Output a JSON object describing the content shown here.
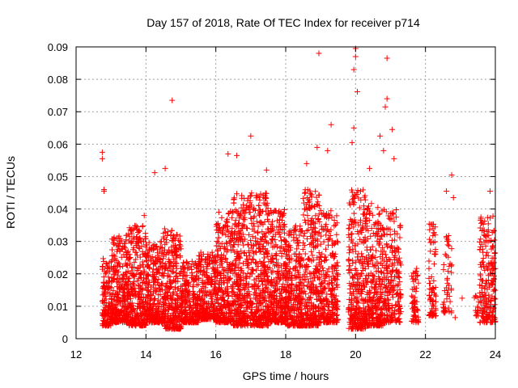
{
  "chart_data": {
    "type": "scatter",
    "title": "Day 157 of 2018, Rate Of TEC Index for receiver p714",
    "xlabel": "GPS time / hours",
    "ylabel": "ROTI / TECUs",
    "xlim": [
      12,
      24
    ],
    "ylim": [
      0,
      0.09
    ],
    "x_ticks": [
      12,
      14,
      16,
      18,
      20,
      22,
      24
    ],
    "x_tick_labels": [
      "12",
      "14",
      "16",
      "18",
      "20",
      "22",
      "24"
    ],
    "y_ticks": [
      0,
      0.01,
      0.02,
      0.03,
      0.04,
      0.05,
      0.06,
      0.07,
      0.08,
      0.09
    ],
    "y_tick_labels": [
      "0",
      "0.01",
      "0.02",
      "0.03",
      "0.04",
      "0.05",
      "0.06",
      "0.07",
      "0.08",
      "0.09"
    ],
    "grid": true,
    "marker": "+",
    "marker_color": "#ff0000",
    "series": [
      {
        "name": "ROTI",
        "points": [
          [
            12.75,
            0.0575
          ],
          [
            12.75,
            0.0555
          ],
          [
            12.8,
            0.046
          ],
          [
            12.8,
            0.0455
          ],
          [
            13.95,
            0.038
          ],
          [
            14.25,
            0.0512
          ],
          [
            14.55,
            0.0525
          ],
          [
            14.75,
            0.0735
          ],
          [
            16.35,
            0.057
          ],
          [
            16.6,
            0.0565
          ],
          [
            17.0,
            0.0625
          ],
          [
            17.45,
            0.052
          ],
          [
            18.6,
            0.054
          ],
          [
            18.95,
            0.088
          ],
          [
            18.9,
            0.059
          ],
          [
            19.3,
            0.066
          ],
          [
            19.2,
            0.058
          ],
          [
            20.0,
            0.0895
          ],
          [
            20.0,
            0.087
          ],
          [
            19.95,
            0.083
          ],
          [
            20.05,
            0.0762
          ],
          [
            19.95,
            0.065
          ],
          [
            19.9,
            0.0605
          ],
          [
            20.4,
            0.0525
          ],
          [
            20.7,
            0.0625
          ],
          [
            20.8,
            0.058
          ],
          [
            20.9,
            0.0865
          ],
          [
            20.9,
            0.074
          ],
          [
            20.85,
            0.0715
          ],
          [
            21.05,
            0.0645
          ],
          [
            21.1,
            0.0555
          ],
          [
            22.75,
            0.0505
          ],
          [
            22.6,
            0.0455
          ],
          [
            22.8,
            0.0435
          ],
          [
            23.85,
            0.0455
          ],
          [
            23.8,
            0.0335
          ],
          [
            23.05,
            0.0125
          ],
          [
            22.85,
            0.0065
          ]
        ],
        "clusters": [
          {
            "x": [
              12.75,
              13.0
            ],
            "y": [
              0.004,
              0.025
            ],
            "n": 130
          },
          {
            "x": [
              13.0,
              13.5
            ],
            "y": [
              0.005,
              0.032
            ],
            "n": 300
          },
          {
            "x": [
              13.5,
              14.0
            ],
            "y": [
              0.004,
              0.035
            ],
            "n": 300
          },
          {
            "x": [
              14.0,
              14.5
            ],
            "y": [
              0.005,
              0.03
            ],
            "n": 280
          },
          {
            "x": [
              14.5,
              15.0
            ],
            "y": [
              0.003,
              0.034
            ],
            "n": 300
          },
          {
            "x": [
              15.0,
              15.5
            ],
            "y": [
              0.005,
              0.024
            ],
            "n": 260
          },
          {
            "x": [
              15.5,
              16.0
            ],
            "y": [
              0.006,
              0.027
            ],
            "n": 260
          },
          {
            "x": [
              16.0,
              16.5
            ],
            "y": [
              0.005,
              0.04
            ],
            "n": 300
          },
          {
            "x": [
              16.5,
              17.0
            ],
            "y": [
              0.004,
              0.045
            ],
            "n": 320
          },
          {
            "x": [
              17.0,
              17.5
            ],
            "y": [
              0.004,
              0.045
            ],
            "n": 320
          },
          {
            "x": [
              17.5,
              18.0
            ],
            "y": [
              0.005,
              0.04
            ],
            "n": 320
          },
          {
            "x": [
              18.0,
              18.5
            ],
            "y": [
              0.004,
              0.035
            ],
            "n": 300
          },
          {
            "x": [
              18.5,
              19.0
            ],
            "y": [
              0.004,
              0.046
            ],
            "n": 300
          },
          {
            "x": [
              19.0,
              19.5
            ],
            "y": [
              0.005,
              0.04
            ],
            "n": 260
          },
          {
            "x": [
              19.8,
              20.3
            ],
            "y": [
              0.003,
              0.046
            ],
            "n": 300
          },
          {
            "x": [
              20.3,
              20.8
            ],
            "y": [
              0.004,
              0.042
            ],
            "n": 280
          },
          {
            "x": [
              20.8,
              21.3
            ],
            "y": [
              0.005,
              0.04
            ],
            "n": 220
          },
          {
            "x": [
              21.6,
              21.8
            ],
            "y": [
              0.005,
              0.022
            ],
            "n": 60
          },
          {
            "x": [
              22.1,
              22.3
            ],
            "y": [
              0.007,
              0.036
            ],
            "n": 80
          },
          {
            "x": [
              22.5,
              22.75
            ],
            "y": [
              0.008,
              0.032
            ],
            "n": 50
          },
          {
            "x": [
              23.4,
              23.55
            ],
            "y": [
              0.007,
              0.016
            ],
            "n": 16
          },
          {
            "x": [
              23.55,
              24.0
            ],
            "y": [
              0.005,
              0.038
            ],
            "n": 200
          }
        ]
      }
    ]
  }
}
